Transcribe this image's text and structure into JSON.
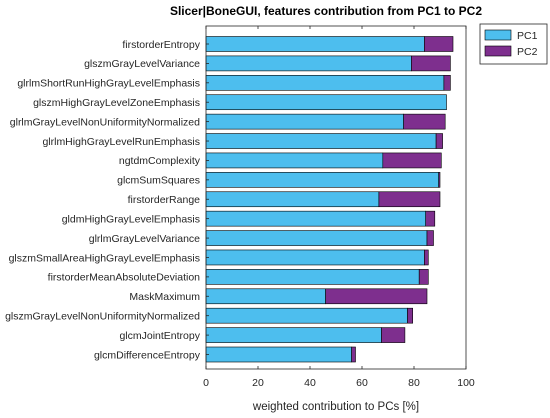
{
  "chart_data": {
    "type": "bar",
    "orientation": "horizontal",
    "stacked": true,
    "title": "Slicer|BoneGUI, features contribution from PC1 to PC2",
    "xlabel": "weighted contribution to PCs [%]",
    "ylabel": "",
    "xlim": [
      0,
      100
    ],
    "xticks": [
      0,
      20,
      40,
      60,
      80,
      100
    ],
    "grid": false,
    "legend_position": "top-right",
    "categories": [
      "firstorderEntropy",
      "glszmGrayLevelVariance",
      "glrlmShortRunHighGrayLevelEmphasis",
      "glszmHighGrayLevelZoneEmphasis",
      "glrlmGrayLevelNonUniformityNormalized",
      "glrlmHighGrayLevelRunEmphasis",
      "ngtdmComplexity",
      "glcmSumSquares",
      "firstorderRange",
      "gldmHighGrayLevelEmphasis",
      "glrlmGrayLevelVariance",
      "glszmSmallAreaHighGrayLevelEmphasis",
      "firstorderMeanAbsoluteDeviation",
      "MaskMaximum",
      "glszmGrayLevelNonUniformityNormalized",
      "glcmJointEntropy",
      "glcmDifferenceEntropy"
    ],
    "series": [
      {
        "name": "PC1",
        "color": "#4DBEEE",
        "values": [
          84,
          79,
          91.5,
          92.5,
          76,
          88.5,
          68,
          89.5,
          66.5,
          84.5,
          85,
          84,
          82,
          46,
          77.5,
          67.5,
          56
        ]
      },
      {
        "name": "PC2",
        "color": "#7E2F8E",
        "values": [
          11,
          15,
          2.5,
          0,
          16,
          2.5,
          22.5,
          0.5,
          23.5,
          3.5,
          2.5,
          1.5,
          3.5,
          39,
          2,
          9,
          1.5
        ]
      }
    ]
  }
}
